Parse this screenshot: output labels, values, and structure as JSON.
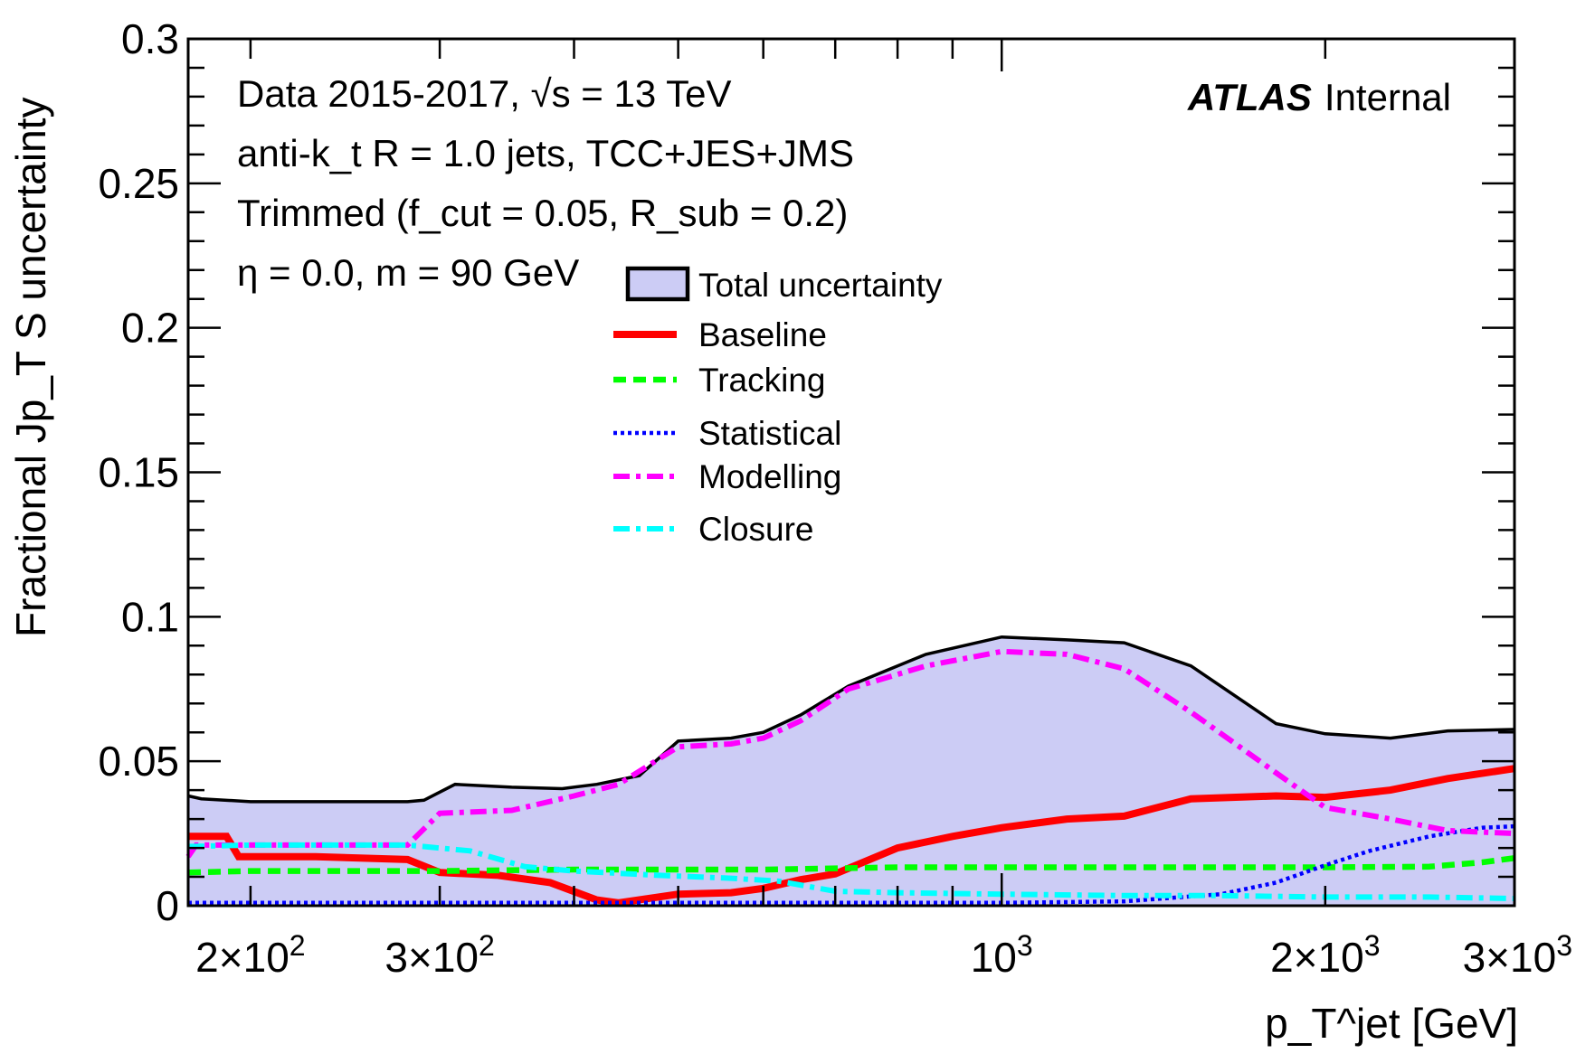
{
  "chart_data": {
    "type": "area",
    "x_scale": "log",
    "xlim": [
      175,
      3000
    ],
    "ylim": [
      0,
      0.3
    ],
    "xlabel": "p_T^jet [GeV]",
    "ylabel": "Fractional Jp_T S uncertainty",
    "y_ticks": [
      "0",
      "0.05",
      "0.1",
      "0.15",
      "0.2",
      "0.25",
      "0.3"
    ],
    "x_ticks": [
      {
        "value": 200,
        "mant": "2",
        "exp": "2"
      },
      {
        "value": 300,
        "mant": "3",
        "exp": "2"
      },
      {
        "value": 1000,
        "mant": "",
        "exp": "3"
      },
      {
        "value": 2000,
        "mant": "2",
        "exp": "3"
      },
      {
        "value": 3000,
        "mant": "3",
        "exp": "3"
      }
    ],
    "annotations": {
      "line1": "Data 2015-2017, √s = 13 TeV",
      "line2": "anti-k_t R = 1.0 jets, TCC+JES+JMS",
      "line3": "Trimmed (f_cut = 0.05, R_sub = 0.2)",
      "line4": "η = 0.0, m = 90 GeV",
      "experiment": "ATLAS",
      "status": "Internal"
    },
    "legend_placement": "upper-center",
    "series": [
      {
        "name": "Total uncertainty",
        "style": "band",
        "color": "#ccccf5",
        "edge": "#000000",
        "x": [
          175,
          180,
          200,
          240,
          280,
          290,
          310,
          350,
          390,
          420,
          460,
          500,
          560,
          600,
          650,
          720,
          850,
          1000,
          1150,
          1300,
          1500,
          1800,
          2000,
          2300,
          2600,
          3000
        ],
        "y": [
          0.038,
          0.037,
          0.036,
          0.036,
          0.036,
          0.0365,
          0.042,
          0.041,
          0.0405,
          0.042,
          0.045,
          0.057,
          0.058,
          0.06,
          0.066,
          0.076,
          0.087,
          0.093,
          0.092,
          0.091,
          0.083,
          0.063,
          0.0595,
          0.058,
          0.0605,
          0.061
        ]
      },
      {
        "name": "Baseline",
        "style": "solid",
        "color": "#ff0000",
        "x": [
          175,
          190,
          195,
          230,
          280,
          300,
          340,
          380,
          420,
          440,
          500,
          560,
          600,
          650,
          700,
          800,
          900,
          1000,
          1150,
          1300,
          1500,
          1800,
          2000,
          2300,
          2600,
          3000
        ],
        "y": [
          0.024,
          0.024,
          0.017,
          0.017,
          0.016,
          0.0115,
          0.0105,
          0.008,
          0.002,
          0.001,
          0.004,
          0.0045,
          0.006,
          0.009,
          0.011,
          0.02,
          0.024,
          0.027,
          0.03,
          0.031,
          0.037,
          0.038,
          0.0375,
          0.04,
          0.044,
          0.0475
        ]
      },
      {
        "name": "Tracking",
        "style": "dashed",
        "color": "#00ff00",
        "x": [
          175,
          200,
          300,
          400,
          600,
          800,
          1000,
          1500,
          2000,
          2500,
          2800,
          3000
        ],
        "y": [
          0.0115,
          0.012,
          0.012,
          0.0125,
          0.0125,
          0.0133,
          0.0133,
          0.0133,
          0.0133,
          0.0135,
          0.015,
          0.0165
        ]
      },
      {
        "name": "Statistical",
        "style": "dotted",
        "color": "#0000ff",
        "x": [
          175,
          1000,
          1300,
          1600,
          1800,
          2000,
          2200,
          2500,
          2800,
          3000
        ],
        "y": [
          0.001,
          0.001,
          0.0015,
          0.004,
          0.008,
          0.014,
          0.019,
          0.024,
          0.027,
          0.0275
        ]
      },
      {
        "name": "Modelling",
        "style": "dashdot",
        "color": "#ff00ff",
        "x": [
          175,
          178,
          200,
          280,
          300,
          350,
          400,
          440,
          500,
          560,
          600,
          650,
          720,
          850,
          1000,
          1150,
          1300,
          1500,
          1800,
          2000,
          2300,
          2600,
          3000
        ],
        "y": [
          0.017,
          0.021,
          0.021,
          0.021,
          0.032,
          0.033,
          0.038,
          0.042,
          0.055,
          0.056,
          0.058,
          0.064,
          0.075,
          0.083,
          0.088,
          0.087,
          0.082,
          0.067,
          0.046,
          0.034,
          0.03,
          0.026,
          0.025
        ]
      },
      {
        "name": "Closure",
        "style": "dashdot",
        "color": "#00ffff",
        "x": [
          175,
          200,
          280,
          320,
          360,
          400,
          480,
          560,
          620,
          700,
          800,
          1000,
          1300,
          1600,
          2000,
          2500,
          3000
        ],
        "y": [
          0.0205,
          0.021,
          0.021,
          0.019,
          0.0135,
          0.012,
          0.0105,
          0.0095,
          0.0085,
          0.005,
          0.0045,
          0.004,
          0.0035,
          0.0035,
          0.003,
          0.003,
          0.0025
        ]
      }
    ]
  }
}
